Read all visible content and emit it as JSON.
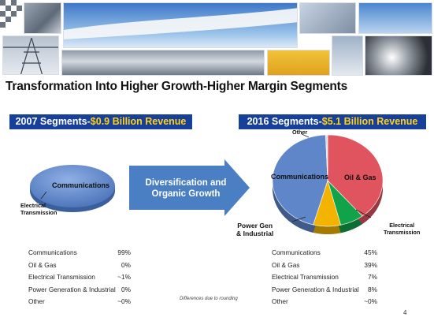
{
  "title": "Transformation Into Higher Growth-Higher Margin Segments",
  "left_header": {
    "prefix": "2007 Segments-",
    "highlight": "$0.9 Billion Revenue"
  },
  "right_header": {
    "prefix": "2016 Segments-",
    "highlight": "$5.1 Billion Revenue"
  },
  "arrow_text": [
    "Diversification and",
    "Organic Growth"
  ],
  "left_pie_labels": {
    "communications": "Communications",
    "electrical": [
      "Electrical",
      "Transmission"
    ]
  },
  "right_pie_labels": {
    "other": "Other",
    "communications": "Communications",
    "oil_gas": "Oil & Gas",
    "electrical": [
      "Electrical",
      "Transmission"
    ],
    "power": [
      "Power Gen",
      "& Industrial"
    ]
  },
  "note": "Differences due to rounding",
  "page_number": "4",
  "colors": {
    "header_bg": "#17409a",
    "highlight": "#ffd21a",
    "communications": "#5f86c8",
    "oil_gas": "#e0545f",
    "electrical": "#12a24a",
    "power": "#f2b400",
    "other": "#d6dbe4",
    "arrow": "#4a7fc4"
  },
  "chart_data": [
    {
      "type": "pie",
      "title": "2007 Segments-$0.9 Billion Revenue",
      "slices": [
        {
          "label": "Communications",
          "value": 99,
          "display": "99%"
        },
        {
          "label": "Oil & Gas",
          "value": 0,
          "display": "0%"
        },
        {
          "label": "Electrical Transmission",
          "value": 1,
          "display": "~1%"
        },
        {
          "label": "Power Generation & Industrial",
          "value": 0,
          "display": "0%"
        },
        {
          "label": "Other",
          "value": 0,
          "display": "~0%"
        }
      ]
    },
    {
      "type": "pie",
      "title": "2016 Segments-$5.1 Billion Revenue",
      "slices": [
        {
          "label": "Communications",
          "value": 45,
          "display": "45%"
        },
        {
          "label": "Oil & Gas",
          "value": 39,
          "display": "39%"
        },
        {
          "label": "Electrical Transmission",
          "value": 7,
          "display": "7%"
        },
        {
          "label": "Power Generation & Industrial",
          "value": 8,
          "display": "8%"
        },
        {
          "label": "Other",
          "value": 0,
          "display": "~0%"
        }
      ]
    }
  ]
}
